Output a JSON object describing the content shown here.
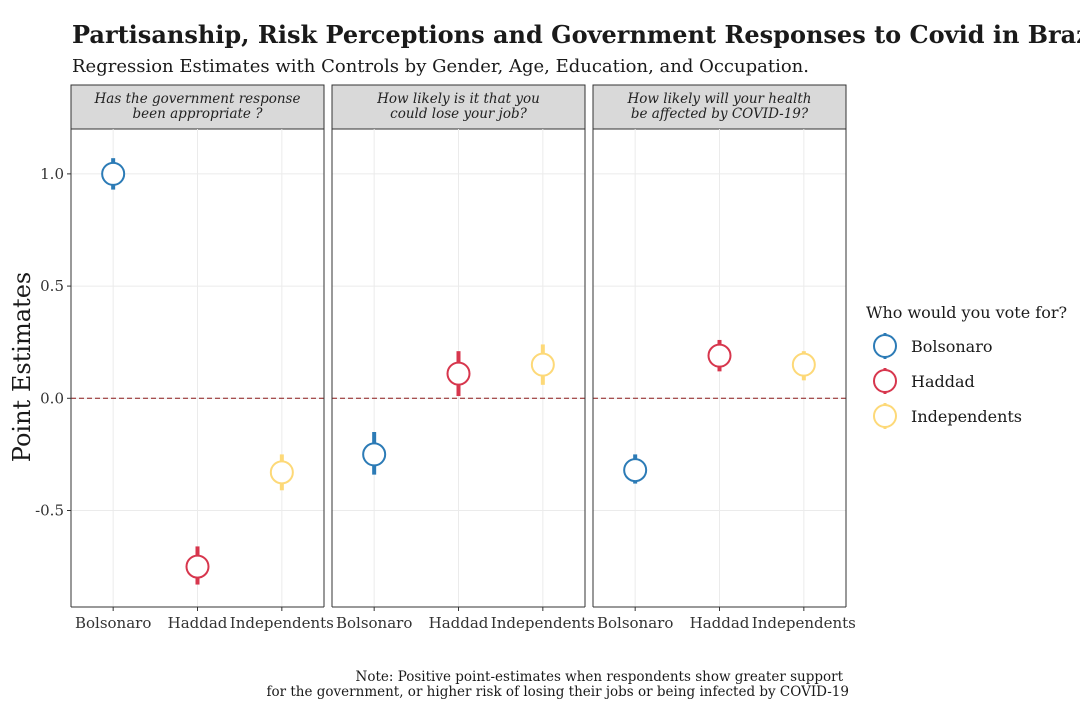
{
  "chart_data": {
    "type": "scatter",
    "title": "Partisanship, Risk Perceptions and Government Responses to Covid in Brazil",
    "subtitle": "Regression Estimates with Controls by Gender, Age, Education, and Occupation.",
    "ylabel": "Point Estimates",
    "xlabel": "",
    "ylim": [
      -0.93,
      1.2
    ],
    "yticks": [
      1.0,
      0.5,
      0.0,
      -0.5
    ],
    "ytick_labels": [
      "1.0",
      "0.5",
      "0.0",
      "-0.5"
    ],
    "reference_line": 0,
    "categories": [
      "Bolsonaro",
      "Haddad",
      "Independents"
    ],
    "colors": {
      "Bolsonaro": "#2c7bb6",
      "Haddad": "#d7364d",
      "Independents": "#fdd978",
      "reference": "#8b1a1a"
    },
    "grid": true,
    "legend": {
      "title": "Who would you vote for?",
      "position": "right",
      "entries": [
        "Bolsonaro",
        "Haddad",
        "Independents"
      ]
    },
    "panels": [
      {
        "strip": [
          "Has the government response",
          "been appropriate ?"
        ],
        "points": [
          {
            "category": "Bolsonaro",
            "estimate": 1.0,
            "low": 0.93,
            "high": 1.07
          },
          {
            "category": "Haddad",
            "estimate": -0.75,
            "low": -0.83,
            "high": -0.66
          },
          {
            "category": "Independents",
            "estimate": -0.33,
            "low": -0.41,
            "high": -0.25
          }
        ]
      },
      {
        "strip": [
          "How likely is it that you",
          "could lose your job?"
        ],
        "points": [
          {
            "category": "Bolsonaro",
            "estimate": -0.25,
            "low": -0.34,
            "high": -0.15
          },
          {
            "category": "Haddad",
            "estimate": 0.11,
            "low": 0.01,
            "high": 0.21
          },
          {
            "category": "Independents",
            "estimate": 0.15,
            "low": 0.06,
            "high": 0.24
          }
        ]
      },
      {
        "strip": [
          "How likely will your health",
          "be affected by COVID-19?"
        ],
        "points": [
          {
            "category": "Bolsonaro",
            "estimate": -0.32,
            "low": -0.38,
            "high": -0.25
          },
          {
            "category": "Haddad",
            "estimate": 0.19,
            "low": 0.12,
            "high": 0.26
          },
          {
            "category": "Independents",
            "estimate": 0.15,
            "low": 0.08,
            "high": 0.21
          }
        ]
      }
    ],
    "caption": [
      "Note: Positive point-estimates when respondents show greater support",
      "for the government, or higher risk of losing their jobs or being infected by COVID-19"
    ]
  }
}
